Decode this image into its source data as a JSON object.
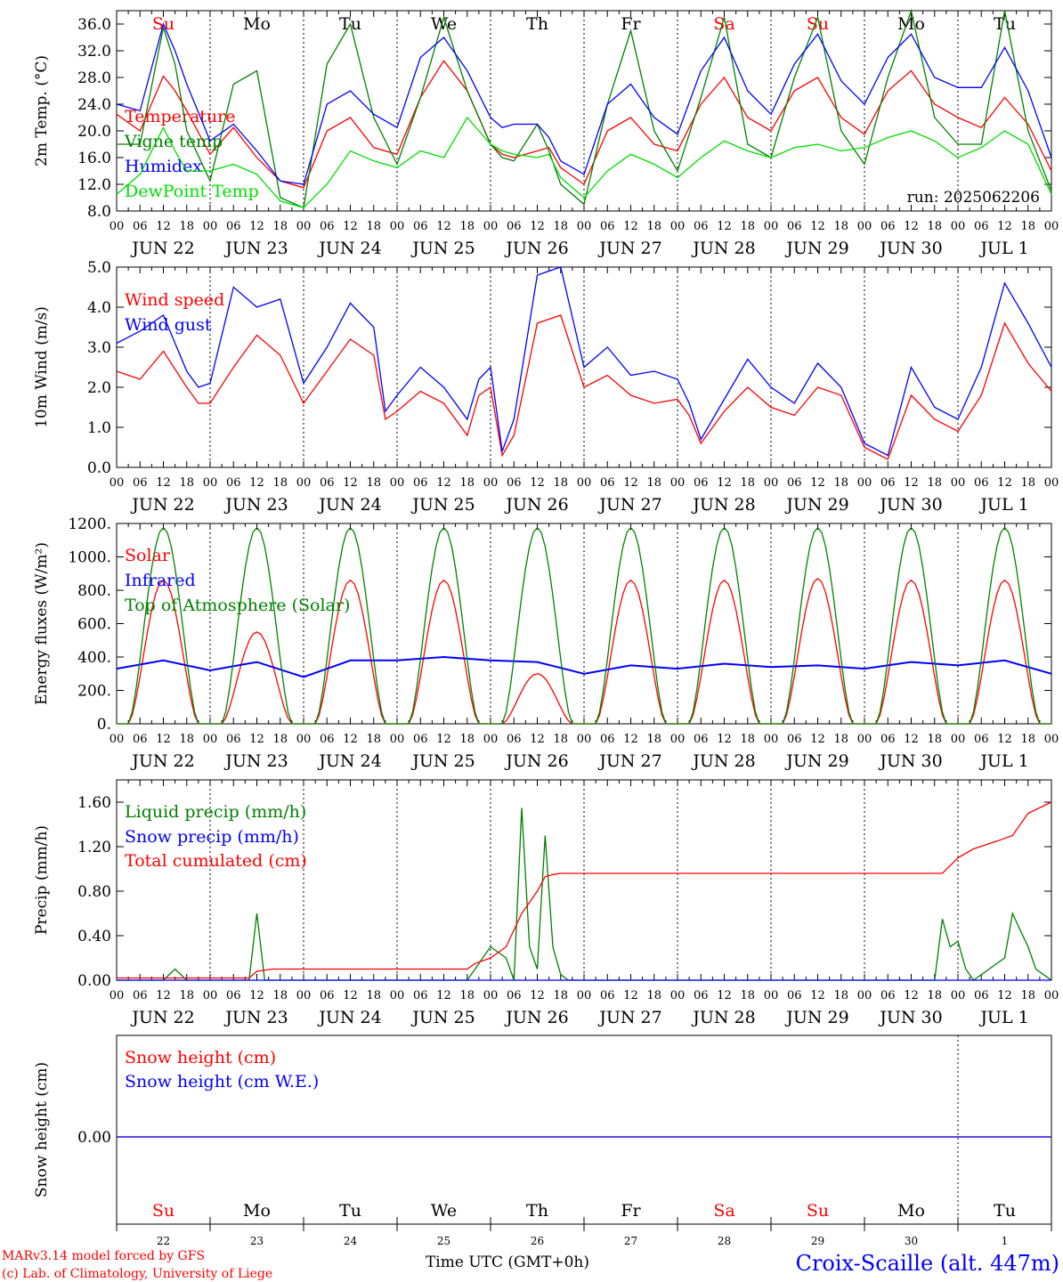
{
  "run_label": "run: 2025062206",
  "x_axis_title": "Time UTC (GMT+0h)",
  "footer": {
    "model_line": "MARv3.14 model forced by GFS",
    "lab_line": "(c) Lab. of Climatology, University of Liege",
    "station": "Croix-Scaille (alt. 447m)"
  },
  "colors": {
    "red": "#ff0000",
    "blue": "#0000ff",
    "green": "#008000",
    "lightgreen": "#00dd00",
    "axis": "#000000"
  },
  "time_axis": {
    "hour_ticks": [
      "00",
      "06",
      "12",
      "18"
    ],
    "dates": [
      "JUN 22",
      "JUN 23",
      "JUN 24",
      "JUN 25",
      "JUN 26",
      "JUN 27",
      "JUN 28",
      "JUN 29",
      "JUN 30",
      "JUL  1"
    ],
    "weekdays": [
      "Su",
      "Mo",
      "Tu",
      "We",
      "Th",
      "Fr",
      "Sa",
      "Su",
      "Mo",
      "Tu"
    ],
    "weekend_flags": [
      true,
      false,
      false,
      false,
      false,
      false,
      true,
      true,
      false,
      false
    ],
    "day_numbers": [
      "22",
      "23",
      "24",
      "25",
      "26",
      "27",
      "28",
      "29",
      "30",
      "1"
    ],
    "month_boundary_day": 9
  },
  "chart_data": [
    {
      "type": "line",
      "ylabel": "2m Temp. (°C)",
      "ylim": [
        8,
        38
      ],
      "yticks": [
        8,
        12,
        16,
        20,
        24,
        28,
        32,
        36
      ],
      "ytick_labels": [
        "8.0",
        "12.0",
        "16.0",
        "20.0",
        "24.0",
        "28.0",
        "32.0",
        "36.0"
      ],
      "x_hours": [
        0,
        6,
        12,
        15,
        18,
        24,
        30,
        36,
        42,
        48,
        54,
        60,
        66,
        72,
        78,
        84,
        90,
        96,
        99,
        102,
        108,
        111,
        114,
        120,
        126,
        132,
        138,
        144,
        150,
        156,
        162,
        168,
        174,
        180,
        186,
        192,
        198,
        204,
        210,
        216,
        222,
        228,
        234,
        240
      ],
      "series": [
        {
          "name": "Temperature",
          "color": "#ff0000",
          "values": [
            22.5,
            20.0,
            28.2,
            26,
            23.0,
            16.5,
            20.5,
            16.0,
            12.5,
            11.5,
            20.0,
            22.0,
            17.5,
            16.5,
            25.0,
            30.5,
            26.0,
            18.0,
            16.5,
            16.0,
            17.0,
            17.5,
            14.5,
            12.0,
            20.0,
            22.0,
            18.0,
            17.0,
            24.0,
            28.0,
            22.0,
            20.0,
            26.0,
            28.0,
            22.0,
            19.5,
            26.0,
            29.0,
            24.0,
            22.0,
            20.5,
            25.0,
            21.0,
            14.0
          ]
        },
        {
          "name": "Vigne temp",
          "color": "#008000",
          "values": [
            18.0,
            18.0,
            35.5,
            30.0,
            20.0,
            12.5,
            27.0,
            29.0,
            10.0,
            8.5,
            30.0,
            36.0,
            22.0,
            15.0,
            25.0,
            37.0,
            26.0,
            18.0,
            16.0,
            15.5,
            21.0,
            17.0,
            12.0,
            9.0,
            24.0,
            35.0,
            20.0,
            14.0,
            25.0,
            37.0,
            18.0,
            16.0,
            28.0,
            37.0,
            20.0,
            15.0,
            28.0,
            38.0,
            22.0,
            18.0,
            18.0,
            38.0,
            20.0,
            11.0
          ]
        },
        {
          "name": "Humidex",
          "color": "#0000ff",
          "values": [
            24.0,
            23.0,
            36.0,
            32.0,
            27.0,
            18.5,
            21.0,
            17.0,
            12.5,
            12.0,
            24.0,
            26.0,
            22.5,
            20.5,
            31.0,
            34.0,
            29.0,
            22.0,
            20.5,
            21.0,
            21.0,
            19.0,
            15.5,
            13.5,
            24.0,
            27.0,
            22.0,
            19.5,
            29.0,
            34.0,
            26.0,
            22.5,
            30.0,
            34.5,
            27.5,
            24.0,
            31.0,
            34.5,
            28.0,
            26.5,
            26.5,
            32.5,
            26.0,
            16.0
          ]
        },
        {
          "name": "DewPoint Temp",
          "color": "#00dd00",
          "values": [
            10.5,
            13.5,
            20.5,
            17.0,
            14.0,
            14.0,
            15.0,
            13.5,
            9.5,
            8.5,
            12.0,
            17.0,
            15.5,
            14.5,
            17.0,
            16.0,
            22.0,
            18.0,
            17.0,
            16.5,
            16.0,
            16.5,
            13.0,
            10.0,
            14.0,
            16.5,
            15.0,
            13.0,
            16.0,
            18.5,
            17.0,
            16.0,
            17.5,
            18.0,
            17.0,
            17.5,
            19.0,
            20.0,
            18.5,
            16.0,
            17.5,
            20.0,
            18.0,
            10.5
          ]
        }
      ]
    },
    {
      "type": "line",
      "ylabel": "10m Wind (m/s)",
      "ylim": [
        0,
        5
      ],
      "yticks": [
        0,
        1,
        2,
        3,
        4,
        5
      ],
      "ytick_labels": [
        "0.0",
        "1.0",
        "2.0",
        "3.0",
        "4.0",
        "5.0"
      ],
      "x_hours": [
        0,
        6,
        12,
        18,
        21,
        24,
        30,
        36,
        42,
        48,
        54,
        60,
        66,
        69,
        72,
        78,
        84,
        90,
        93,
        96,
        99,
        102,
        108,
        114,
        120,
        126,
        132,
        138,
        144,
        147,
        150,
        156,
        162,
        168,
        174,
        180,
        186,
        192,
        198,
        204,
        210,
        216,
        222,
        228,
        234,
        240
      ],
      "series": [
        {
          "name": "Wind speed",
          "color": "#ff0000",
          "values": [
            2.4,
            2.2,
            2.9,
            2.0,
            1.6,
            1.6,
            2.5,
            3.3,
            2.8,
            1.6,
            2.4,
            3.2,
            2.8,
            1.2,
            1.4,
            1.9,
            1.6,
            0.8,
            1.8,
            2.0,
            0.3,
            0.8,
            3.6,
            3.8,
            2.0,
            2.3,
            1.8,
            1.6,
            1.7,
            1.3,
            0.6,
            1.4,
            2.0,
            1.5,
            1.3,
            2.0,
            1.8,
            0.5,
            0.2,
            1.8,
            1.2,
            0.9,
            1.8,
            3.6,
            2.6,
            1.9
          ]
        },
        {
          "name": "Wind gust",
          "color": "#0000ff",
          "values": [
            3.1,
            3.4,
            3.8,
            2.4,
            2.0,
            2.1,
            4.5,
            4.0,
            4.2,
            2.1,
            3.0,
            4.1,
            3.5,
            1.4,
            1.8,
            2.5,
            2.0,
            1.2,
            2.2,
            2.5,
            0.4,
            1.2,
            4.8,
            5.0,
            2.5,
            3.0,
            2.3,
            2.4,
            2.2,
            1.6,
            0.7,
            1.7,
            2.7,
            2.0,
            1.6,
            2.6,
            2.0,
            0.6,
            0.3,
            2.5,
            1.5,
            1.2,
            2.5,
            4.6,
            3.6,
            2.5
          ]
        }
      ]
    },
    {
      "type": "line",
      "ylabel": "Energy fluxes (W/m²)",
      "ylim": [
        0,
        1200
      ],
      "yticks": [
        0,
        200,
        400,
        600,
        800,
        1000,
        1200
      ],
      "ytick_labels": [
        "0.",
        "200.",
        "400.",
        "600.",
        "800.",
        "1000.",
        "1200."
      ],
      "diurnal": {
        "daylight_start_hour": 3,
        "daylight_end_hour": 21
      },
      "series": [
        {
          "name": "Solar",
          "color": "#ff0000",
          "daily_peaks": [
            860,
            550,
            860,
            860,
            300,
            860,
            860,
            870,
            860,
            860
          ]
        },
        {
          "name": "Infrared",
          "color": "#0000ff",
          "x_hours": [
            0,
            12,
            24,
            36,
            48,
            60,
            72,
            84,
            96,
            108,
            120,
            132,
            144,
            156,
            168,
            180,
            192,
            204,
            216,
            228,
            240
          ],
          "values": [
            330,
            380,
            320,
            370,
            280,
            380,
            380,
            400,
            380,
            370,
            300,
            350,
            330,
            360,
            340,
            350,
            330,
            370,
            350,
            380,
            300
          ]
        },
        {
          "name": "Top of Atmosphere (Solar)",
          "color": "#008000",
          "daily_peaks": [
            1175,
            1175,
            1175,
            1175,
            1175,
            1175,
            1175,
            1175,
            1175,
            1175
          ]
        }
      ]
    },
    {
      "type": "line",
      "ylabel": "Precip (mm/h)",
      "ylim": [
        0,
        1.8
      ],
      "yticks": [
        0,
        0.4,
        0.8,
        1.2,
        1.6
      ],
      "ytick_labels": [
        "0.00",
        "0.40",
        "0.80",
        "1.20",
        "1.60"
      ],
      "series": [
        {
          "name": "Liquid precip (mm/h)",
          "color": "#008000",
          "x_hours": [
            0,
            12,
            15,
            18,
            30,
            34,
            36,
            38,
            40,
            90,
            96,
            100,
            102,
            104,
            106,
            108,
            110,
            112,
            114,
            116,
            118,
            120,
            210,
            212,
            214,
            216,
            218,
            220,
            228,
            230,
            232,
            234,
            236,
            238,
            240
          ],
          "values": [
            0,
            0,
            0.1,
            0,
            0,
            0,
            0.6,
            0,
            0,
            0,
            0.3,
            0.2,
            0,
            1.55,
            0.3,
            0.1,
            1.3,
            0.3,
            0.05,
            0,
            0,
            0,
            0,
            0.55,
            0.3,
            0.35,
            0.1,
            0,
            0.2,
            0.6,
            0.45,
            0.3,
            0.1,
            0.05,
            0
          ]
        },
        {
          "name": "Snow precip (mm/h)",
          "color": "#0000ff",
          "x_hours": [
            0,
            240
          ],
          "values": [
            0,
            0
          ]
        },
        {
          "name": "Total cumulated (cm)",
          "color": "#ff0000",
          "x_hours": [
            0,
            34,
            36,
            40,
            90,
            92,
            96,
            100,
            104,
            106,
            108,
            110,
            112,
            114,
            200,
            212,
            216,
            220,
            226,
            230,
            234,
            240
          ],
          "values": [
            0.02,
            0.02,
            0.08,
            0.1,
            0.1,
            0.15,
            0.2,
            0.3,
            0.6,
            0.7,
            0.8,
            0.93,
            0.95,
            0.96,
            0.96,
            0.96,
            1.1,
            1.18,
            1.25,
            1.3,
            1.5,
            1.6
          ]
        }
      ]
    },
    {
      "type": "line",
      "ylabel": "Snow height (cm)",
      "yticks": [
        0
      ],
      "ytick_labels": [
        "0.00"
      ],
      "series": [
        {
          "name": "Snow height (cm)",
          "color": "#ff0000",
          "x_hours": [
            0,
            240
          ],
          "values": [
            0,
            0
          ]
        },
        {
          "name": "Snow height (cm W.E.)",
          "color": "#0000ff",
          "x_hours": [
            0,
            240
          ],
          "values": [
            0,
            0
          ]
        }
      ]
    }
  ]
}
